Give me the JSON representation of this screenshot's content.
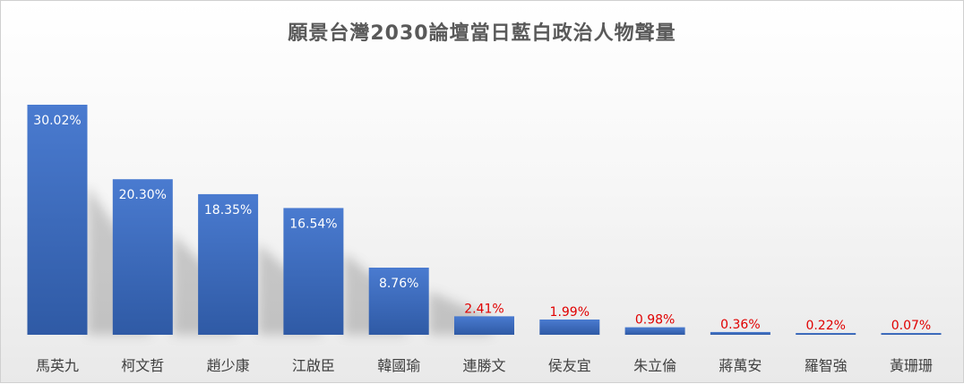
{
  "chart_data": {
    "type": "bar",
    "title": "願景台灣2030論壇當日藍白政治人物聲量",
    "categories": [
      "馬英九",
      "柯文哲",
      "趙少康",
      "江啟臣",
      "韓國瑜",
      "連勝文",
      "侯友宜",
      "朱立倫",
      "蔣萬安",
      "羅智強",
      "黃珊珊"
    ],
    "values": [
      30.02,
      20.3,
      18.35,
      16.54,
      8.76,
      2.41,
      1.99,
      0.98,
      0.36,
      0.22,
      0.07
    ],
    "data_labels": [
      "30.02%",
      "20.30%",
      "18.35%",
      "16.54%",
      "8.76%",
      "2.41%",
      "1.99%",
      "0.98%",
      "0.36%",
      "0.22%",
      "0.07%"
    ],
    "ylim": [
      0,
      30.02
    ],
    "grid": false,
    "legend": "none"
  },
  "colors": {
    "bar_top": "#4a7bd0",
    "bar_bottom": "#2f5aa5",
    "label_inside": "#ffffff",
    "label_outside": "#e00000",
    "category_text": "#404040",
    "title_text": "#595959"
  }
}
